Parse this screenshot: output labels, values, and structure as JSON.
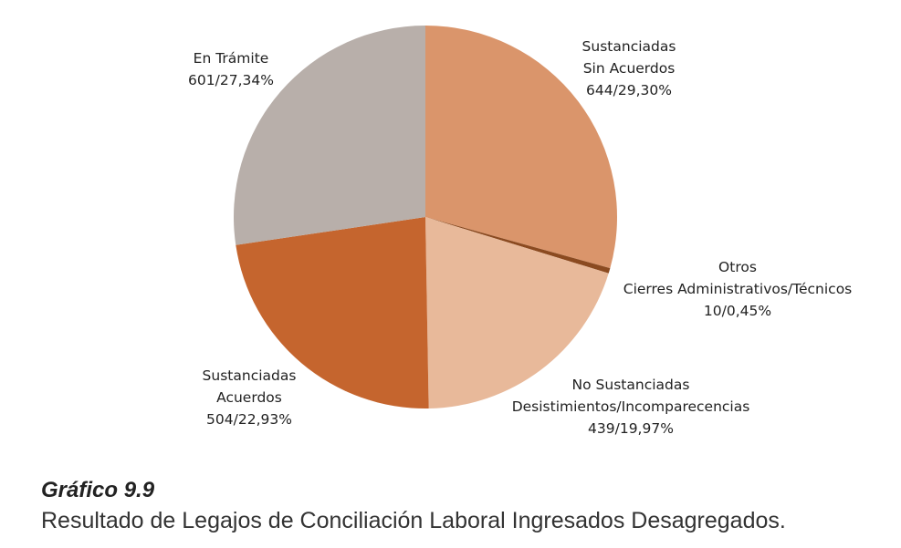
{
  "chart_data": {
    "type": "pie",
    "start": "top",
    "direction": "clockwise",
    "slices": [
      {
        "label_lines": [
          "Sustanciadas",
          "Sin Acuerdos"
        ],
        "count": 644,
        "value_text": "644/29,30%",
        "percent": 29.3,
        "color": "#DA956B"
      },
      {
        "label_lines": [
          "Otros",
          "Cierres Administrativos/Técnicos"
        ],
        "count": 10,
        "value_text": "10/0,45%",
        "percent": 0.45,
        "color": "#8B4A20"
      },
      {
        "label_lines": [
          "No Sustanciadas",
          "Desistimientos/Incomparecencias"
        ],
        "count": 439,
        "value_text": "439/19,97%",
        "percent": 19.97,
        "color": "#E8B99A"
      },
      {
        "label_lines": [
          "Sustanciadas",
          "Acuerdos"
        ],
        "count": 504,
        "value_text": "504/22,93%",
        "percent": 22.93,
        "color": "#C5652E"
      },
      {
        "label_lines": [
          "En Trámite"
        ],
        "count": 601,
        "value_text": "601/27,34%",
        "percent": 27.34,
        "color": "#B8AFAA"
      }
    ]
  },
  "caption": {
    "number": "Gráfico 9.9",
    "title": "Resultado de Legajos de Conciliación Laboral Ingresados Desagregados."
  }
}
